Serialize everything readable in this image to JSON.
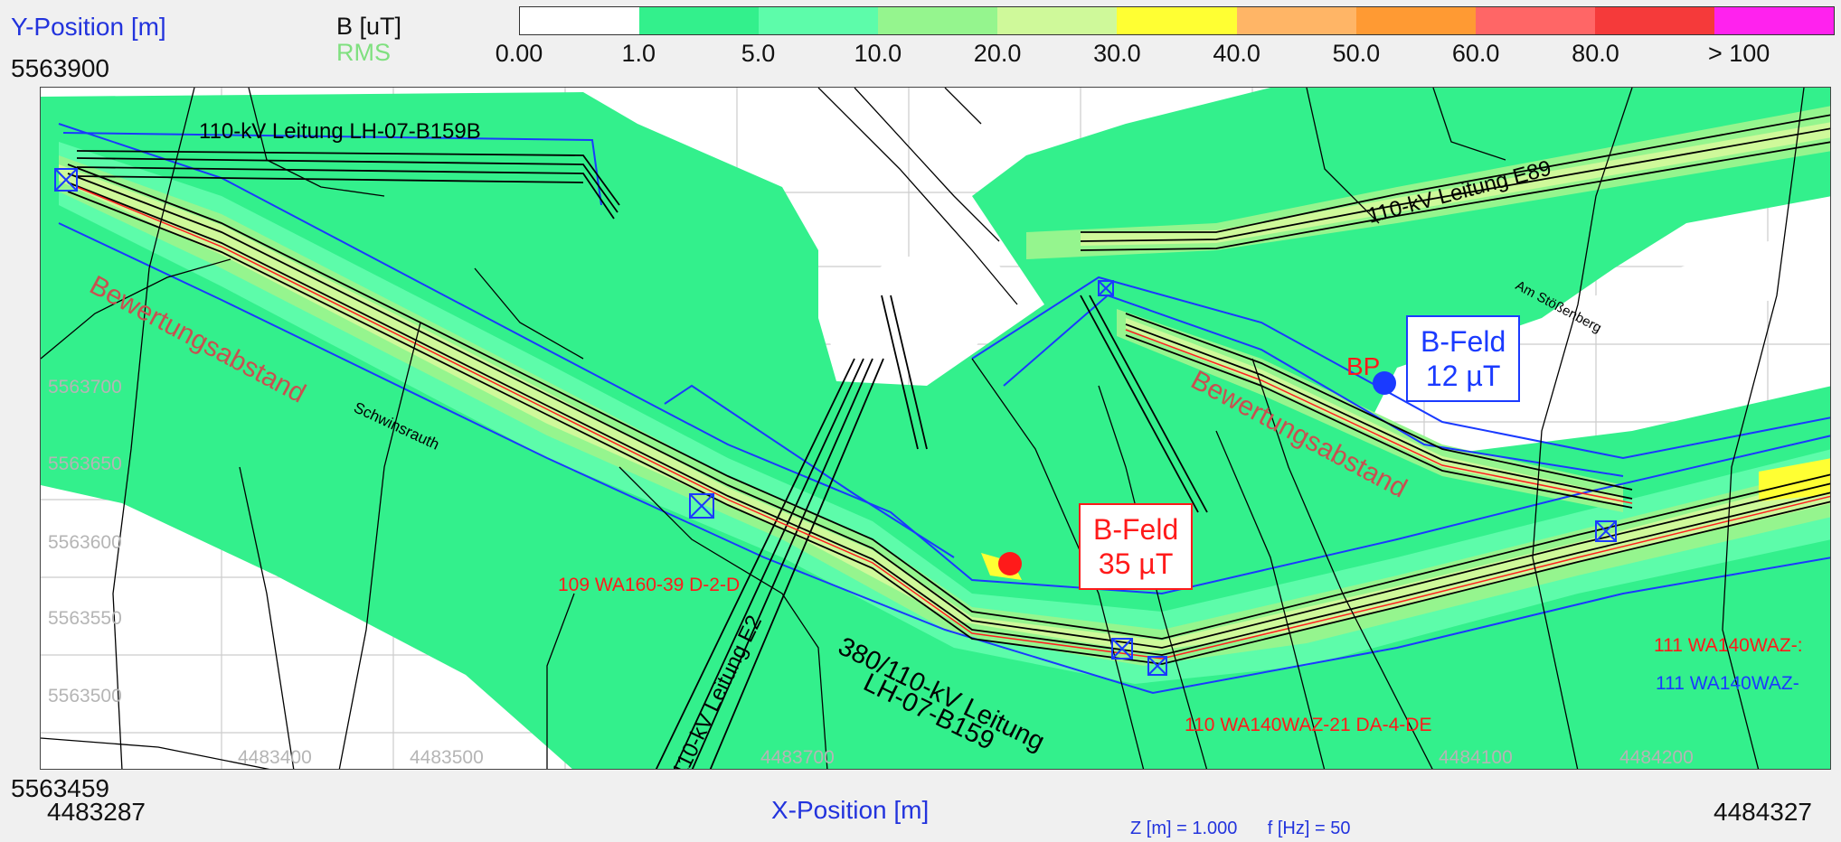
{
  "header": {
    "y_axis_title": "Y-Position [m]",
    "unit_label": "B [uT]",
    "rms_label": "RMS",
    "y_top_value": "5563900"
  },
  "legend": {
    "colors": [
      "#ffffff",
      "#33f08c",
      "#5dfcaa",
      "#95f58e",
      "#cff99a",
      "#ffff33",
      "#ffb566",
      "#ff9a33",
      "#ff6666",
      "#f53a3a",
      "#ff22ee"
    ],
    "ticks": [
      "0.00",
      "1.0",
      "5.0",
      "10.0",
      "20.0",
      "30.0",
      "40.0",
      "50.0",
      "60.0",
      "80.0",
      "> 100"
    ]
  },
  "map": {
    "line_labels": {
      "lh07b159b": "110-kV Leitung LH-07-B159B",
      "e89": "110-kV Leitung E89",
      "e2": "110-kV Leitung E2",
      "main_line_1": "380/110-kV Leitung",
      "main_line_2": "LH-07-B159"
    },
    "bewertung_left": "Bewertungsabstand",
    "bewertung_right": "Bewertungsabstand",
    "street_left": "Schwinsrauth",
    "street_right": "Am Stößenberg",
    "bp_label": "BP",
    "callout_blue": {
      "line1": "B-Feld",
      "line2": "12 µT"
    },
    "callout_red": {
      "line1": "B-Feld",
      "line2": "35 µT"
    },
    "circuit_labels": {
      "c109": "109 WA160-39 D-2-D",
      "c110": "110 WA140WAZ-21 DA-4-DE",
      "c111_red": "111 WA140WAZ-:",
      "c111_blue": "111 WA140WAZ-"
    },
    "x_grid_labels": [
      "4483400",
      "4483500",
      "4483700",
      "4484100",
      "4484200"
    ],
    "y_grid_labels": [
      "5563650",
      "5563600",
      "5563550",
      "5563500"
    ],
    "y_partial_label": "5563700"
  },
  "footer": {
    "y_bottom_value": "5563459",
    "x_left_value": "4483287",
    "x_right_value": "4484327",
    "x_axis_title": "X-Position [m]",
    "params": "Z [m] = 1.000      f [Hz] = 50"
  }
}
